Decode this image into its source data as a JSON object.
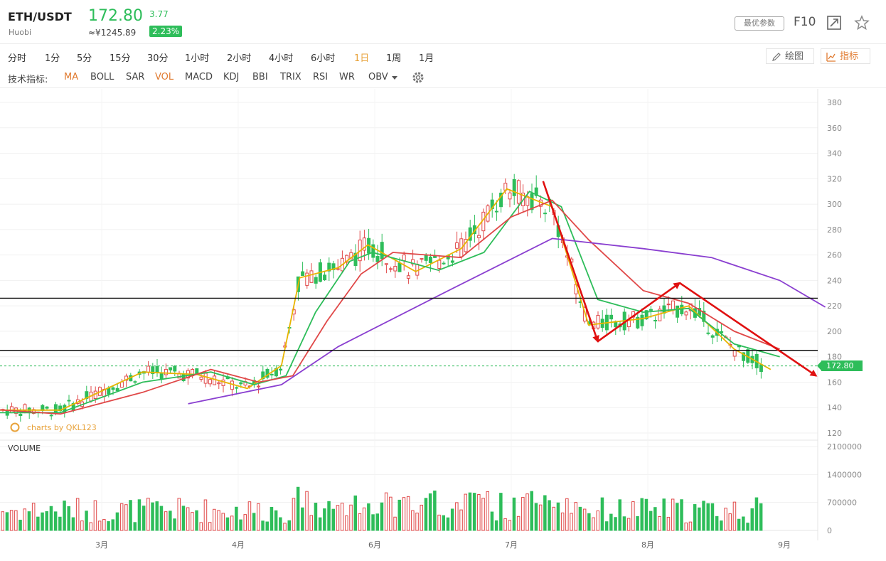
{
  "header": {
    "pair": "ETH/USDT",
    "exchange": "Huobi",
    "price": "172.80",
    "price_cny": "≈¥1245.89",
    "change_abs": "3.77",
    "change_pct": "2.23%",
    "best_params_label": "最优参数",
    "f10_label": "F10",
    "fullscreen_icon": "expand-icon",
    "favorite_icon": "star-icon"
  },
  "timeframes": {
    "items": [
      "分时",
      "1分",
      "5分",
      "15分",
      "30分",
      "1小时",
      "2小时",
      "4小时",
      "6小时",
      "1日",
      "1周",
      "1月"
    ],
    "active": "1日"
  },
  "tools": {
    "draw_label": "绘图",
    "indicator_label": "指标"
  },
  "indicators": {
    "label": "技术指标:",
    "items": [
      "MA",
      "BOLL",
      "SAR",
      "VOL",
      "MACD",
      "KDJ",
      "BBI",
      "TRIX",
      "RSI",
      "WR",
      "OBV"
    ],
    "active": [
      "MA",
      "VOL"
    ],
    "settings_icon": "gear-icon"
  },
  "watermark": "charts by QKL123",
  "volume_label": "VOLUME",
  "price_tag": "172.80",
  "colors": {
    "up": "#e04848",
    "down": "#2ebd5a",
    "accent": "#e8a23a"
  },
  "chart_data": {
    "type": "candlestick",
    "y_ticks": [
      120,
      140,
      160,
      180,
      200,
      220,
      240,
      260,
      280,
      300,
      320,
      340,
      360,
      380
    ],
    "volume_ticks": [
      "0",
      "700000",
      "1400000",
      "2100000"
    ],
    "x_ticks": [
      "3月",
      "4月",
      "6月",
      "7月",
      "8月",
      "9月"
    ],
    "horizontal_lines": [
      226,
      185
    ],
    "last_price": 172.8,
    "ma_series": [
      {
        "color": "#e8b400",
        "points": [
          [
            "2-1",
            138
          ],
          [
            "2-22",
            138
          ],
          [
            "3-10",
            168
          ],
          [
            "3-22",
            166
          ],
          [
            "4-5",
            155
          ],
          [
            "4-20",
            173
          ],
          [
            "4-28",
            242
          ],
          [
            "5-15",
            250
          ],
          [
            "5-28",
            268
          ],
          [
            "6-10",
            247
          ],
          [
            "6-20",
            265
          ],
          [
            "6-30",
            312
          ],
          [
            "7-10",
            298
          ],
          [
            "7-18",
            205
          ],
          [
            "7-30",
            210
          ],
          [
            "8-10",
            220
          ],
          [
            "8-20",
            186
          ],
          [
            "8-28",
            170
          ]
        ]
      },
      {
        "color": "#2ebd5a",
        "points": [
          [
            "2-1",
            136
          ],
          [
            "2-22",
            136
          ],
          [
            "3-10",
            160
          ],
          [
            "3-25",
            168
          ],
          [
            "4-8",
            158
          ],
          [
            "4-22",
            165
          ],
          [
            "5-5",
            215
          ],
          [
            "5-20",
            255
          ],
          [
            "5-30",
            262
          ],
          [
            "6-15",
            248
          ],
          [
            "6-25",
            262
          ],
          [
            "7-5",
            310
          ],
          [
            "7-12",
            298
          ],
          [
            "7-20",
            225
          ],
          [
            "7-30",
            215
          ],
          [
            "8-10",
            218
          ],
          [
            "8-20",
            190
          ],
          [
            "8-30",
            180
          ]
        ]
      },
      {
        "color": "#e04848",
        "points": [
          [
            "2-1",
            140
          ],
          [
            "2-22",
            135
          ],
          [
            "3-10",
            152
          ],
          [
            "3-25",
            170
          ],
          [
            "4-10",
            160
          ],
          [
            "4-25",
            165
          ],
          [
            "5-10",
            208
          ],
          [
            "5-25",
            245
          ],
          [
            "6-5",
            262
          ],
          [
            "6-20",
            258
          ],
          [
            "7-1",
            290
          ],
          [
            "7-10",
            303
          ],
          [
            "7-18",
            272
          ],
          [
            "7-30",
            232
          ],
          [
            "8-10",
            222
          ],
          [
            "8-20",
            200
          ],
          [
            "8-30",
            186
          ]
        ]
      },
      {
        "color": "#8a3fd0",
        "points": [
          [
            "3-20",
            143
          ],
          [
            "4-20",
            158
          ],
          [
            "5-15",
            188
          ],
          [
            "6-15",
            228
          ],
          [
            "7-10",
            273
          ],
          [
            "7-30",
            265
          ],
          [
            "8-15",
            258
          ],
          [
            "8-30",
            240
          ],
          [
            "9-10",
            219
          ]
        ]
      }
    ],
    "annotations": [
      {
        "type": "arrow",
        "from": [
          "7-8",
          318
        ],
        "to": [
          "7-20",
          192
        ],
        "color": "#e01010"
      },
      {
        "type": "arrow",
        "from": [
          "7-20",
          192
        ],
        "to": [
          "8-8",
          238
        ],
        "color": "#e01010"
      },
      {
        "type": "arrow",
        "from": [
          "8-8",
          238
        ],
        "to": [
          "9-8",
          165
        ],
        "color": "#e01010"
      }
    ]
  }
}
